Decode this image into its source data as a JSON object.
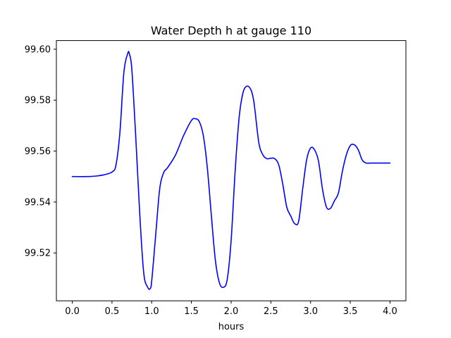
{
  "chart_data": {
    "type": "line",
    "title": "Water Depth h at gauge 110",
    "xlabel": "hours",
    "ylabel": "",
    "xlim": [
      -0.2,
      4.2
    ],
    "ylim": [
      99.5012,
      99.6034
    ],
    "xticks": [
      0.0,
      0.5,
      1.0,
      1.5,
      2.0,
      2.5,
      3.0,
      3.5,
      4.0
    ],
    "xtick_labels": [
      "0.0",
      "0.5",
      "1.0",
      "1.5",
      "2.0",
      "2.5",
      "3.0",
      "3.5",
      "4.0"
    ],
    "yticks": [
      99.52,
      99.54,
      99.56,
      99.58,
      99.6
    ],
    "ytick_labels": [
      "99.52",
      "99.54",
      "99.56",
      "99.58",
      "99.60"
    ],
    "grid": false,
    "series": [
      {
        "color": "#0000ff",
        "x": [
          0.0,
          0.2,
          0.3,
          0.4,
          0.5,
          0.55,
          0.6,
          0.65,
          0.7,
          0.72,
          0.75,
          0.8,
          0.85,
          0.9,
          0.95,
          0.98,
          1.0,
          1.05,
          1.1,
          1.15,
          1.2,
          1.3,
          1.4,
          1.5,
          1.55,
          1.6,
          1.65,
          1.7,
          1.75,
          1.8,
          1.85,
          1.9,
          1.95,
          2.0,
          2.05,
          2.1,
          2.15,
          2.2,
          2.25,
          2.28,
          2.3,
          2.35,
          2.4,
          2.45,
          2.5,
          2.55,
          2.6,
          2.65,
          2.7,
          2.75,
          2.8,
          2.85,
          2.9,
          2.95,
          3.0,
          3.05,
          3.1,
          3.15,
          3.2,
          3.25,
          3.3,
          3.35,
          3.4,
          3.45,
          3.5,
          3.55,
          3.6,
          3.65,
          3.7,
          3.75,
          3.8,
          3.85,
          3.9,
          3.95,
          4.0
        ],
        "y": [
          99.55,
          99.55,
          99.5502,
          99.5507,
          99.5518,
          99.5545,
          99.5675,
          99.591,
          99.5985,
          99.598,
          99.592,
          99.565,
          99.535,
          99.512,
          99.5065,
          99.506,
          99.509,
          99.527,
          99.545,
          99.5515,
          99.5535,
          99.5585,
          99.566,
          99.572,
          99.5727,
          99.5715,
          99.566,
          99.5535,
          99.535,
          99.5175,
          99.5085,
          99.5065,
          99.5095,
          99.525,
          99.552,
          99.573,
          99.583,
          99.5855,
          99.584,
          99.5805,
          99.576,
          99.563,
          99.5585,
          99.557,
          99.5572,
          99.557,
          99.5545,
          99.547,
          99.538,
          99.5345,
          99.5315,
          99.5325,
          99.545,
          99.5565,
          99.5612,
          99.5605,
          99.556,
          99.545,
          99.538,
          99.5375,
          99.5405,
          99.5435,
          99.552,
          99.5585,
          99.5622,
          99.5625,
          99.5605,
          99.5565,
          99.5553,
          99.5553,
          99.5553,
          99.5553,
          99.5553,
          99.5553,
          99.5553
        ]
      }
    ]
  }
}
